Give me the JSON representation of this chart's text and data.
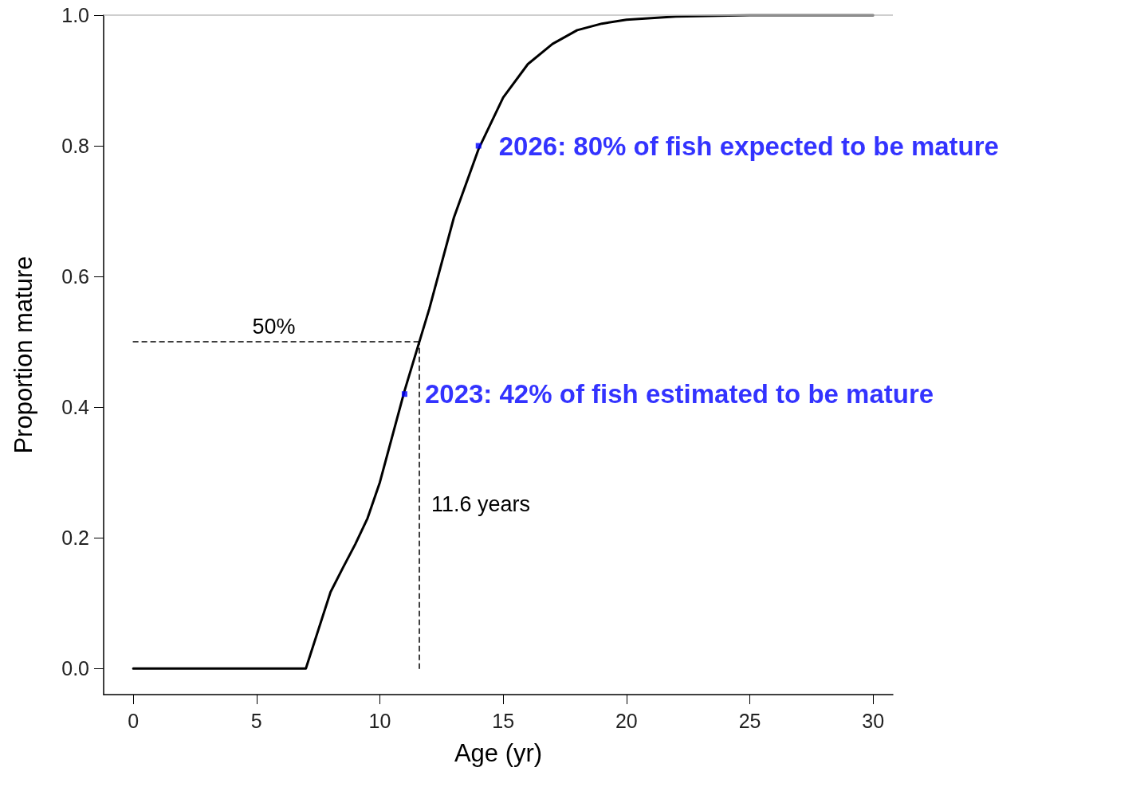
{
  "chart_data": {
    "type": "line",
    "xlabel": "Age (yr)",
    "ylabel": "Proportion mature",
    "xlim": [
      -1.2,
      30.8
    ],
    "ylim": [
      -0.04,
      1.0
    ],
    "xticks": [
      0,
      5,
      10,
      15,
      20,
      25,
      30
    ],
    "yticks": [
      {
        "value": 0,
        "label": "0.0"
      },
      0.2,
      0.4,
      0.6,
      0.8,
      {
        "value": 1,
        "label": "1.0"
      }
    ],
    "grid": false,
    "marker": "none",
    "line_style": "solid",
    "series": [
      {
        "color": "#000000",
        "x": [
          0,
          7,
          8,
          8.5,
          9,
          9.5,
          10,
          11,
          11.6,
          12,
          13,
          14,
          15,
          16,
          17,
          18,
          19,
          20,
          22,
          25,
          30
        ],
        "values": [
          0,
          0,
          0.117,
          0.154,
          0.19,
          0.23,
          0.285,
          0.425,
          0.5,
          0.55,
          0.69,
          0.795,
          0.874,
          0.925,
          0.956,
          0.977,
          0.987,
          0.993,
          0.998,
          1.0,
          1.0
        ]
      },
      {
        "color": "#000000",
        "x": [
          0,
          11.6
        ],
        "values": [
          0.5,
          0.5
        ],
        "line_style": "dashed"
      },
      {
        "color": "#000000",
        "x": [
          11.6,
          11.6
        ],
        "values": [
          0,
          0.5
        ],
        "line_style": "dashed"
      },
      {
        "type": "scatter",
        "color": "#0000ff",
        "marker": "square",
        "x": [
          14,
          11
        ],
        "values": [
          0.8,
          0.42
        ],
        "value_labels": [
          "2026: 80% of fish expected to be mature",
          "2023: 42% of fish estimated to be mature"
        ]
      }
    ],
    "ref_lines": [
      {
        "axis": "y",
        "value": 1,
        "color": "#bebebe"
      }
    ],
    "annotations": [
      {
        "text": "50%",
        "x": 4.34,
        "y": 0.5
      },
      {
        "text": "11.6 years",
        "x": 11.6,
        "y": 0.228
      }
    ]
  }
}
